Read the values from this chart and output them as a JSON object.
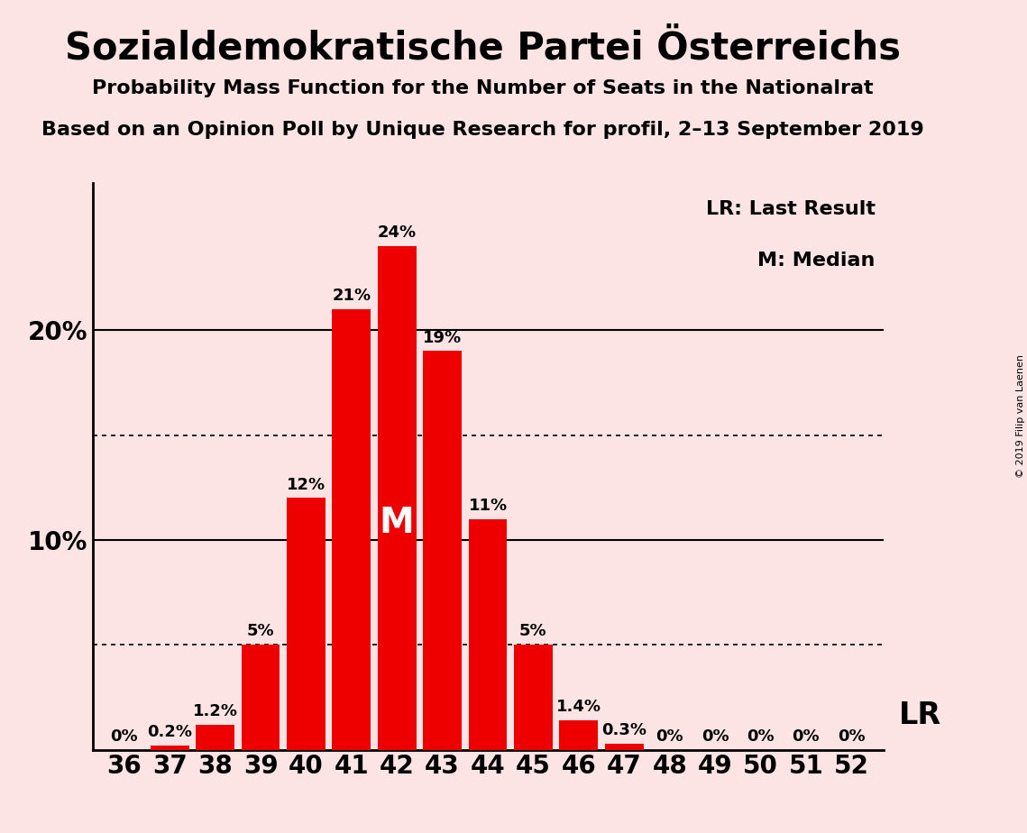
{
  "title": "Sozialdemokratische Partei Österreichs",
  "subtitle1": "Probability Mass Function for the Number of Seats in the Nationalrat",
  "subtitle2": "Based on an Opinion Poll by Unique Research for profil, 2–13 September 2019",
  "copyright": "© 2019 Filip van Laenen",
  "seats": [
    36,
    37,
    38,
    39,
    40,
    41,
    42,
    43,
    44,
    45,
    46,
    47,
    48,
    49,
    50,
    51,
    52
  ],
  "probabilities": [
    0.0,
    0.2,
    1.2,
    5.0,
    12.0,
    21.0,
    24.0,
    19.0,
    11.0,
    5.0,
    1.4,
    0.3,
    0.0,
    0.0,
    0.0,
    0.0,
    0.0
  ],
  "prob_labels": [
    "0%",
    "0.2%",
    "1.2%",
    "5%",
    "12%",
    "21%",
    "24%",
    "19%",
    "11%",
    "5%",
    "1.4%",
    "0.3%",
    "0%",
    "0%",
    "0%",
    "0%",
    "0%"
  ],
  "bar_color": "#ee0000",
  "background_color": "#fce4e4",
  "median_seat": 42,
  "last_result_seat": 52,
  "solid_gridlines": [
    10,
    20
  ],
  "dotted_gridlines": [
    5,
    15
  ],
  "legend_lr": "LR: Last Result",
  "legend_m": "M: Median",
  "ylim": [
    0,
    27
  ],
  "ytick_vals": [
    10,
    20
  ],
  "ytick_labels": [
    "10%",
    "20%"
  ],
  "label_fontsize": 13,
  "tick_fontsize": 20,
  "title_fontsize": 30,
  "subtitle_fontsize": 16,
  "legend_fontsize": 16,
  "lr_fontsize": 24,
  "m_fontsize": 28
}
